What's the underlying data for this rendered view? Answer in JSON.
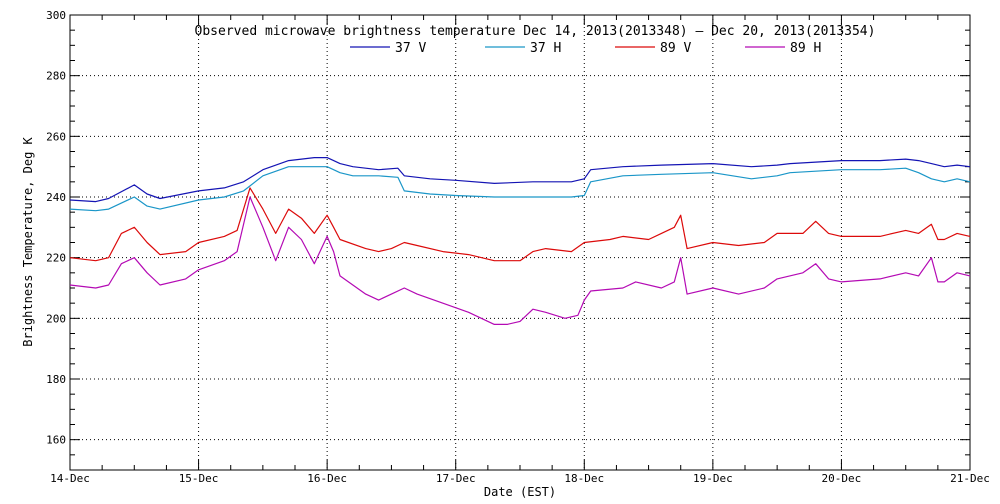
{
  "chart_data": {
    "type": "line",
    "title": "Observed microwave brightness temperature Dec 14, 2013(2013348) – Dec 20, 2013(2013354)",
    "xlabel": "Date (EST)",
    "ylabel": "Brightness Temperature, Deg K",
    "ylim": [
      150,
      300
    ],
    "xlim": [
      0,
      7
    ],
    "grid": true,
    "legend_position": "top-center",
    "x_ticks": [
      {
        "x": 0,
        "label": "14-Dec"
      },
      {
        "x": 1,
        "label": "15-Dec"
      },
      {
        "x": 2,
        "label": "16-Dec"
      },
      {
        "x": 3,
        "label": "17-Dec"
      },
      {
        "x": 4,
        "label": "18-Dec"
      },
      {
        "x": 5,
        "label": "19-Dec"
      },
      {
        "x": 6,
        "label": "20-Dec"
      },
      {
        "x": 7,
        "label": "21-Dec"
      }
    ],
    "y_ticks": [
      160,
      180,
      200,
      220,
      240,
      260,
      280,
      300
    ],
    "series": [
      {
        "name": "37 V",
        "color": "#1414b4",
        "points": [
          [
            0,
            239
          ],
          [
            0.2,
            238.5
          ],
          [
            0.3,
            239.5
          ],
          [
            0.5,
            244
          ],
          [
            0.6,
            241
          ],
          [
            0.7,
            239.5
          ],
          [
            1.0,
            242
          ],
          [
            1.2,
            243
          ],
          [
            1.35,
            245
          ],
          [
            1.5,
            249
          ],
          [
            1.7,
            252
          ],
          [
            1.9,
            253
          ],
          [
            2.0,
            253
          ],
          [
            2.05,
            252
          ],
          [
            2.1,
            251
          ],
          [
            2.2,
            250
          ],
          [
            2.4,
            249
          ],
          [
            2.55,
            249.5
          ],
          [
            2.6,
            247
          ],
          [
            2.8,
            246
          ],
          [
            3.0,
            245.5
          ],
          [
            3.3,
            244.5
          ],
          [
            3.6,
            245
          ],
          [
            3.9,
            245
          ],
          [
            4.0,
            246
          ],
          [
            4.05,
            249
          ],
          [
            4.3,
            250
          ],
          [
            4.6,
            250.5
          ],
          [
            5.0,
            251
          ],
          [
            5.3,
            250
          ],
          [
            5.5,
            250.5
          ],
          [
            5.6,
            251
          ],
          [
            5.8,
            251.5
          ],
          [
            6.0,
            252
          ],
          [
            6.3,
            252
          ],
          [
            6.5,
            252.5
          ],
          [
            6.6,
            252
          ],
          [
            6.7,
            251
          ],
          [
            6.8,
            250
          ],
          [
            6.9,
            250.5
          ],
          [
            7.0,
            250
          ]
        ]
      },
      {
        "name": "37 H",
        "color": "#1a96c8",
        "points": [
          [
            0,
            236
          ],
          [
            0.2,
            235.5
          ],
          [
            0.3,
            236
          ],
          [
            0.5,
            240
          ],
          [
            0.6,
            237
          ],
          [
            0.7,
            236
          ],
          [
            1.0,
            239
          ],
          [
            1.2,
            240
          ],
          [
            1.35,
            242
          ],
          [
            1.5,
            247
          ],
          [
            1.7,
            250
          ],
          [
            1.9,
            250
          ],
          [
            2.0,
            250
          ],
          [
            2.05,
            249
          ],
          [
            2.1,
            248
          ],
          [
            2.2,
            247
          ],
          [
            2.4,
            247
          ],
          [
            2.55,
            246.5
          ],
          [
            2.6,
            242
          ],
          [
            2.8,
            241
          ],
          [
            3.0,
            240.5
          ],
          [
            3.3,
            240
          ],
          [
            3.6,
            240
          ],
          [
            3.9,
            240
          ],
          [
            4.0,
            240.5
          ],
          [
            4.05,
            245
          ],
          [
            4.3,
            247
          ],
          [
            4.6,
            247.5
          ],
          [
            5.0,
            248
          ],
          [
            5.3,
            246
          ],
          [
            5.5,
            247
          ],
          [
            5.6,
            248
          ],
          [
            5.8,
            248.5
          ],
          [
            6.0,
            249
          ],
          [
            6.3,
            249
          ],
          [
            6.5,
            249.5
          ],
          [
            6.6,
            248
          ],
          [
            6.7,
            246
          ],
          [
            6.8,
            245
          ],
          [
            6.9,
            246
          ],
          [
            7.0,
            245
          ]
        ]
      },
      {
        "name": "89 V",
        "color": "#dc0a0a",
        "points": [
          [
            0,
            220
          ],
          [
            0.2,
            219
          ],
          [
            0.3,
            220
          ],
          [
            0.4,
            228
          ],
          [
            0.5,
            230
          ],
          [
            0.6,
            225
          ],
          [
            0.7,
            221
          ],
          [
            0.9,
            222
          ],
          [
            1.0,
            225
          ],
          [
            1.2,
            227
          ],
          [
            1.3,
            229
          ],
          [
            1.4,
            243
          ],
          [
            1.5,
            236
          ],
          [
            1.6,
            228
          ],
          [
            1.7,
            236
          ],
          [
            1.8,
            233
          ],
          [
            1.9,
            228
          ],
          [
            2.0,
            234
          ],
          [
            2.05,
            230
          ],
          [
            2.1,
            226
          ],
          [
            2.3,
            223
          ],
          [
            2.4,
            222
          ],
          [
            2.5,
            223
          ],
          [
            2.6,
            225
          ],
          [
            2.7,
            224
          ],
          [
            2.9,
            222
          ],
          [
            3.1,
            221
          ],
          [
            3.3,
            219
          ],
          [
            3.5,
            219
          ],
          [
            3.6,
            222
          ],
          [
            3.7,
            223
          ],
          [
            3.9,
            222
          ],
          [
            4.0,
            225
          ],
          [
            4.2,
            226
          ],
          [
            4.3,
            227
          ],
          [
            4.5,
            226
          ],
          [
            4.6,
            228
          ],
          [
            4.7,
            230
          ],
          [
            4.75,
            234
          ],
          [
            4.8,
            223
          ],
          [
            5.0,
            225
          ],
          [
            5.2,
            224
          ],
          [
            5.4,
            225
          ],
          [
            5.5,
            228
          ],
          [
            5.7,
            228
          ],
          [
            5.8,
            232
          ],
          [
            5.9,
            228
          ],
          [
            6.0,
            227
          ],
          [
            6.3,
            227
          ],
          [
            6.5,
            229
          ],
          [
            6.6,
            228
          ],
          [
            6.7,
            231
          ],
          [
            6.75,
            226
          ],
          [
            6.8,
            226
          ],
          [
            6.9,
            228
          ],
          [
            7.0,
            227
          ]
        ]
      },
      {
        "name": "89 H",
        "color": "#b40ab4",
        "points": [
          [
            0,
            211
          ],
          [
            0.2,
            210
          ],
          [
            0.3,
            211
          ],
          [
            0.4,
            218
          ],
          [
            0.5,
            220
          ],
          [
            0.6,
            215
          ],
          [
            0.7,
            211
          ],
          [
            0.9,
            213
          ],
          [
            1.0,
            216
          ],
          [
            1.2,
            219
          ],
          [
            1.3,
            222
          ],
          [
            1.4,
            240
          ],
          [
            1.5,
            230
          ],
          [
            1.6,
            219
          ],
          [
            1.7,
            230
          ],
          [
            1.8,
            226
          ],
          [
            1.9,
            218
          ],
          [
            2.0,
            227
          ],
          [
            2.05,
            222
          ],
          [
            2.1,
            214
          ],
          [
            2.3,
            208
          ],
          [
            2.4,
            206
          ],
          [
            2.5,
            208
          ],
          [
            2.6,
            210
          ],
          [
            2.7,
            208
          ],
          [
            2.9,
            205
          ],
          [
            3.1,
            202
          ],
          [
            3.3,
            198
          ],
          [
            3.4,
            198
          ],
          [
            3.5,
            199
          ],
          [
            3.6,
            203
          ],
          [
            3.7,
            202
          ],
          [
            3.85,
            200
          ],
          [
            3.95,
            201
          ],
          [
            4.0,
            206
          ],
          [
            4.05,
            209
          ],
          [
            4.3,
            210
          ],
          [
            4.4,
            212
          ],
          [
            4.6,
            210
          ],
          [
            4.7,
            212
          ],
          [
            4.75,
            220
          ],
          [
            4.8,
            208
          ],
          [
            5.0,
            210
          ],
          [
            5.2,
            208
          ],
          [
            5.4,
            210
          ],
          [
            5.5,
            213
          ],
          [
            5.7,
            215
          ],
          [
            5.8,
            218
          ],
          [
            5.9,
            213
          ],
          [
            6.0,
            212
          ],
          [
            6.3,
            213
          ],
          [
            6.5,
            215
          ],
          [
            6.6,
            214
          ],
          [
            6.7,
            220
          ],
          [
            6.75,
            212
          ],
          [
            6.8,
            212
          ],
          [
            6.9,
            215
          ],
          [
            7.0,
            214
          ]
        ]
      }
    ]
  }
}
